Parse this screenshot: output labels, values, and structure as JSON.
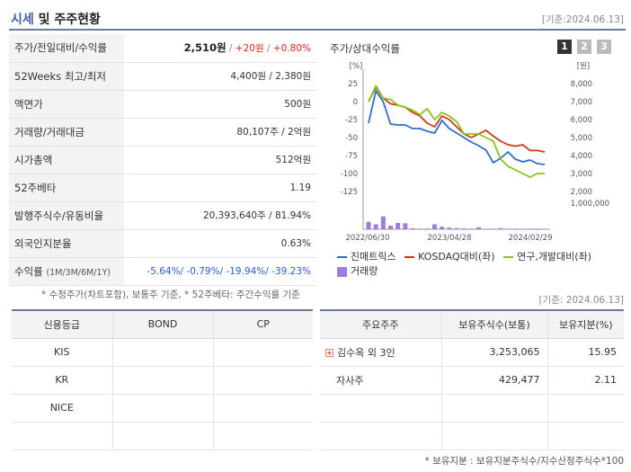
{
  "header": {
    "title_highlight": "시세",
    "title_rest": " 및 주주현황",
    "date": "[기준:2024.06.13]"
  },
  "info_rows": {
    "price": {
      "label": "주가/전일대비/수익률",
      "price": "2,510원",
      "sep1": " / ",
      "change": "+20원",
      "sep2": " / ",
      "rate": "+0.80%"
    },
    "week52": {
      "label": "52Weeks 최고/최저",
      "value": "4,400원 / 2,380원"
    },
    "par": {
      "label": "액면가",
      "value": "500원"
    },
    "volume": {
      "label": "거래량/거래대금",
      "value": "80,107주 / 2억원"
    },
    "mcap": {
      "label": "시가총액",
      "value": "512억원"
    },
    "beta": {
      "label": "52주베타",
      "value": "1.19"
    },
    "shares": {
      "label": "발행주식수/유동비율",
      "value": "20,393,640주 / 81.94%"
    },
    "foreign": {
      "label": "외국인지분율",
      "value": "0.63%"
    },
    "returns": {
      "label": "수익률",
      "label_sub": "(1M/3M/6M/1Y)",
      "v1": "-5.64%/",
      "v2": " -0.79%/",
      "v3": " -19.94%/",
      "v4": " -39.23%"
    }
  },
  "notes": {
    "left": "* 수정주가(차트포함), 보통주 기준, * 52주베타: 주간수익률 기준",
    "date2": "[기준: 2024.06.13]",
    "right": "* 보유지분 : 보유지분주식수/지수산정주식수*100"
  },
  "chart_panel": {
    "title": "주가/상대수익률",
    "buttons": [
      "1",
      "2",
      "3"
    ]
  },
  "chart_data": {
    "type": "line",
    "x_ticks": [
      "2022/06/30",
      "2023/04/28",
      "2024/02/29"
    ],
    "y_left_unit": "[%]",
    "y_left_ticks": [
      "25",
      "0",
      "-25",
      "-50",
      "-75",
      "-100",
      "-125"
    ],
    "y_left_range": [
      -125,
      25
    ],
    "y_right_unit": "[원]",
    "y_right_ticks": [
      "8,000",
      "7,000",
      "6,000",
      "5,000",
      "4,000",
      "3,000",
      "2,000"
    ],
    "y_right_range": [
      2000,
      8000
    ],
    "volume_tick": "1,000,000",
    "volume_range": [
      0,
      1000000
    ],
    "series": [
      {
        "name": "진매트릭스",
        "color": "#2f6fc6",
        "axis": "right",
        "values": [
          5800,
          7600,
          7000,
          5750,
          5700,
          5700,
          5500,
          5500,
          5350,
          5250,
          5950,
          5500,
          5250,
          5000,
          4750,
          4550,
          4300,
          3600,
          3850,
          4200,
          3800,
          3650,
          3750,
          3550,
          3500
        ]
      },
      {
        "name": "KOSDAQ대비(좌)",
        "color": "#cc3a1a",
        "axis": "left",
        "values": [
          0,
          20,
          5,
          -3,
          -5,
          -8,
          -15,
          -20,
          -30,
          -35,
          -20,
          -25,
          -35,
          -45,
          -50,
          -45,
          -40,
          -48,
          -55,
          -60,
          -62,
          -60,
          -68,
          -68,
          -70
        ]
      },
      {
        "name": "연구,개발대비(좌)",
        "color": "#8cc21a",
        "axis": "left",
        "values": [
          0,
          22,
          5,
          3,
          -5,
          -8,
          -12,
          -18,
          -10,
          -25,
          -15,
          -20,
          -28,
          -45,
          -45,
          -45,
          -50,
          -55,
          -80,
          -90,
          -95,
          -100,
          -105,
          -100,
          -100
        ]
      },
      {
        "name": "거래량",
        "color": "#9b7fdc",
        "axis": "volume",
        "values": [
          380000,
          250000,
          650000,
          180000,
          320000,
          300000,
          50000,
          30000,
          40000,
          250000,
          130000,
          80000,
          60000,
          40000,
          30000,
          100000,
          20000,
          20000,
          60000,
          20000,
          15000,
          20000,
          30000,
          15000,
          20000
        ]
      }
    ]
  },
  "credit_table": {
    "headers": [
      "신용등급",
      "BOND",
      "CP"
    ],
    "rows": [
      [
        "KIS",
        "",
        ""
      ],
      [
        "KR",
        "",
        ""
      ],
      [
        "NICE",
        "",
        ""
      ],
      [
        "",
        "",
        ""
      ]
    ]
  },
  "holder_table": {
    "headers": [
      "주요주주",
      "보유주식수(보통)",
      "보유지분(%)"
    ],
    "rows": [
      [
        "김수옥 외 3인",
        "3,253,065",
        "15.95"
      ],
      [
        "자사주",
        "429,477",
        "2.11"
      ],
      [
        "",
        "",
        ""
      ],
      [
        "",
        "",
        ""
      ]
    ],
    "expand_icon": "plus-icon"
  }
}
